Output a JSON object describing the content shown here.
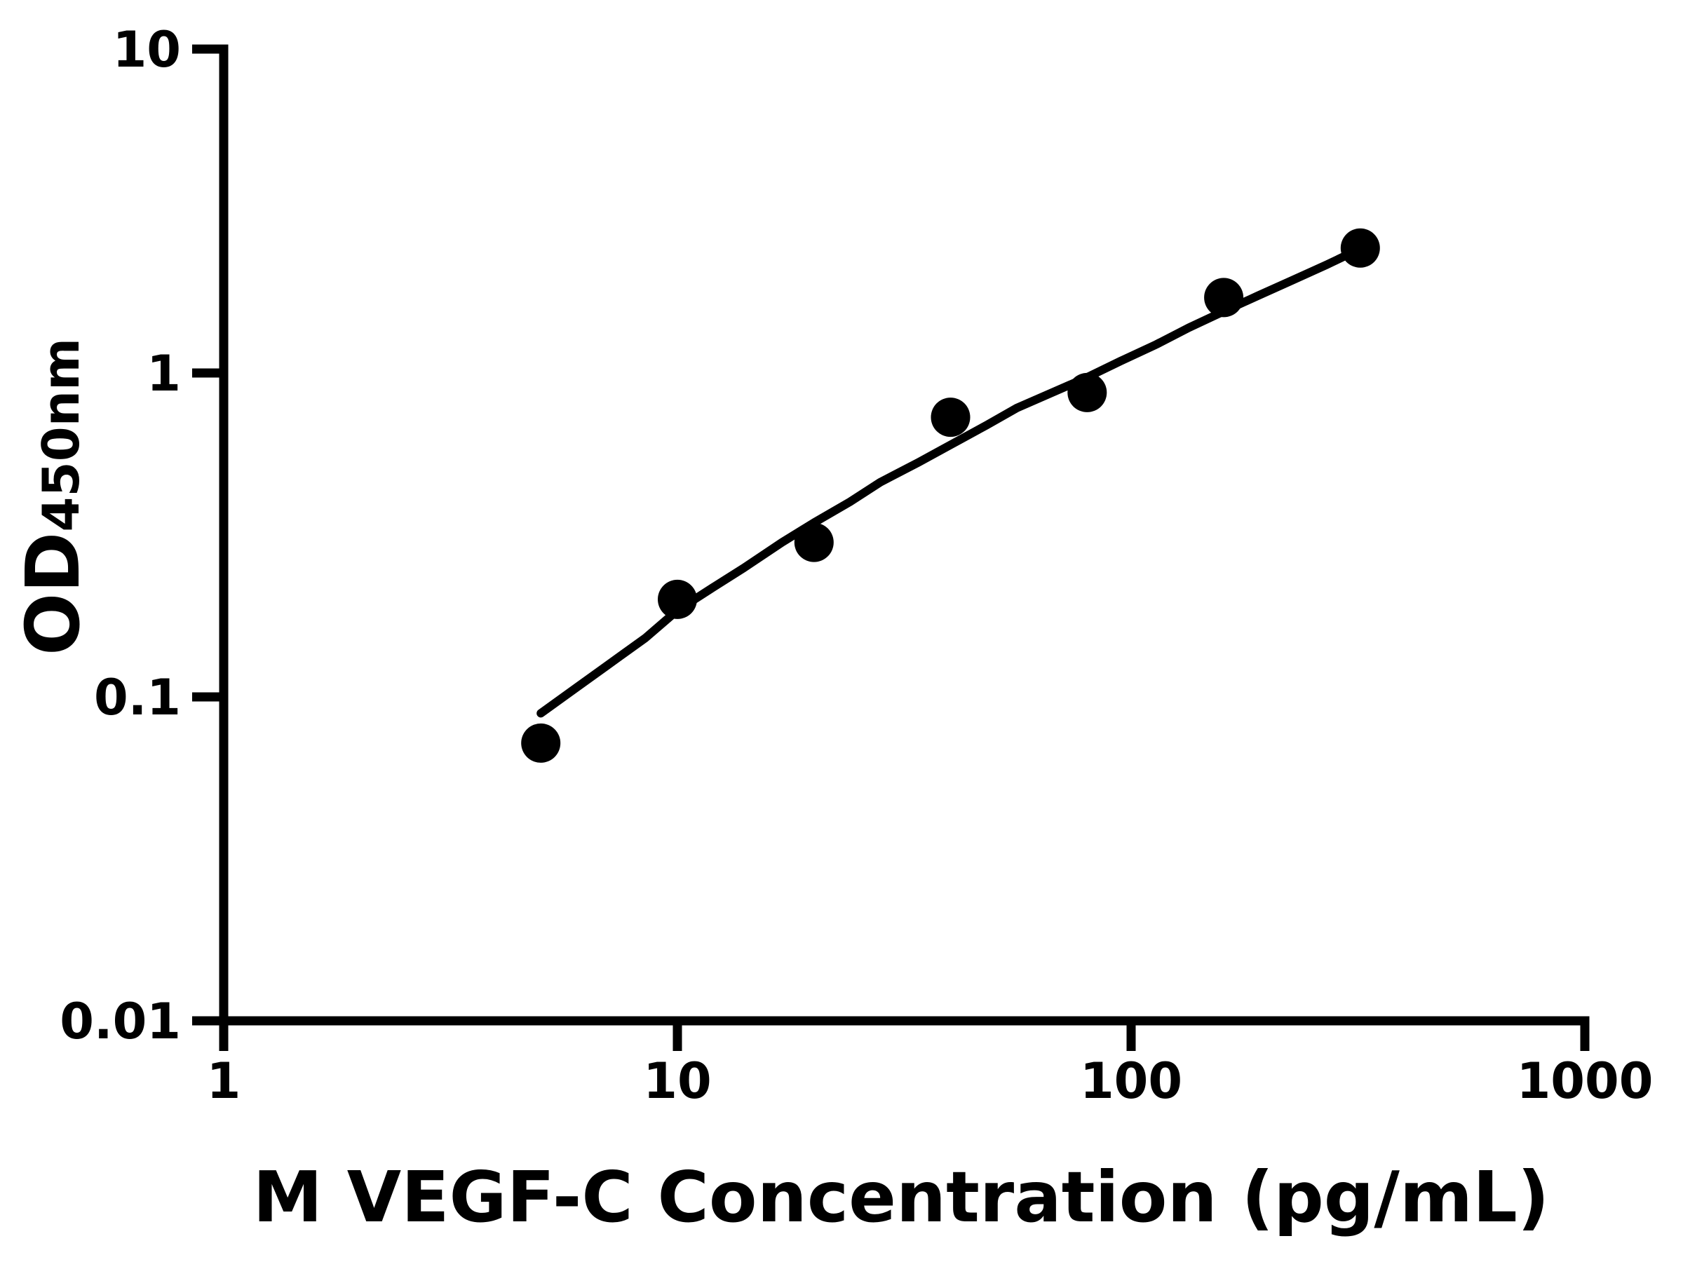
{
  "chart_data": {
    "type": "scatter",
    "title": "",
    "xlabel": "M VEGF-C Concentration (pg/mL)",
    "ylabel": "OD450nm",
    "ylabel_main": "OD",
    "ylabel_sub": "450nm",
    "x_scale": "log",
    "y_scale": "log",
    "xlim": [
      1,
      1000
    ],
    "ylim": [
      0.01,
      10
    ],
    "grid": false,
    "legend": "none",
    "x_ticks": [
      {
        "value": 1,
        "label": "1"
      },
      {
        "value": 10,
        "label": "10"
      },
      {
        "value": 100,
        "label": "100"
      },
      {
        "value": 1000,
        "label": "1000"
      }
    ],
    "y_ticks": [
      {
        "value": 0.01,
        "label": "0.01"
      },
      {
        "value": 0.1,
        "label": "0.1"
      },
      {
        "value": 1,
        "label": "1"
      },
      {
        "value": 10,
        "label": "10"
      }
    ],
    "series": [
      {
        "name": "standards",
        "type": "scatter",
        "marker": "filled-circle",
        "color": "#000000",
        "points": [
          [
            5,
            0.072
          ],
          [
            10,
            0.2
          ],
          [
            20,
            0.3
          ],
          [
            40,
            0.73
          ],
          [
            80,
            0.87
          ],
          [
            160,
            1.71
          ],
          [
            320,
            2.43
          ]
        ]
      },
      {
        "name": "fit-curve",
        "type": "line",
        "color": "#000000",
        "points": [
          [
            5,
            0.089
          ],
          [
            6,
            0.107
          ],
          [
            7,
            0.125
          ],
          [
            8.5,
            0.152
          ],
          [
            10,
            0.185
          ],
          [
            12,
            0.218
          ],
          [
            14,
            0.25
          ],
          [
            17,
            0.3
          ],
          [
            20,
            0.345
          ],
          [
            24,
            0.4
          ],
          [
            28,
            0.46
          ],
          [
            34,
            0.53
          ],
          [
            40,
            0.6
          ],
          [
            48,
            0.69
          ],
          [
            56,
            0.78
          ],
          [
            67,
            0.87
          ],
          [
            80,
            0.97
          ],
          [
            95,
            1.09
          ],
          [
            113,
            1.22
          ],
          [
            134,
            1.38
          ],
          [
            160,
            1.55
          ],
          [
            190,
            1.73
          ],
          [
            226,
            1.93
          ],
          [
            270,
            2.16
          ],
          [
            320,
            2.42
          ]
        ]
      }
    ],
    "colors": {
      "foreground": "#000000",
      "background": "#ffffff"
    }
  }
}
